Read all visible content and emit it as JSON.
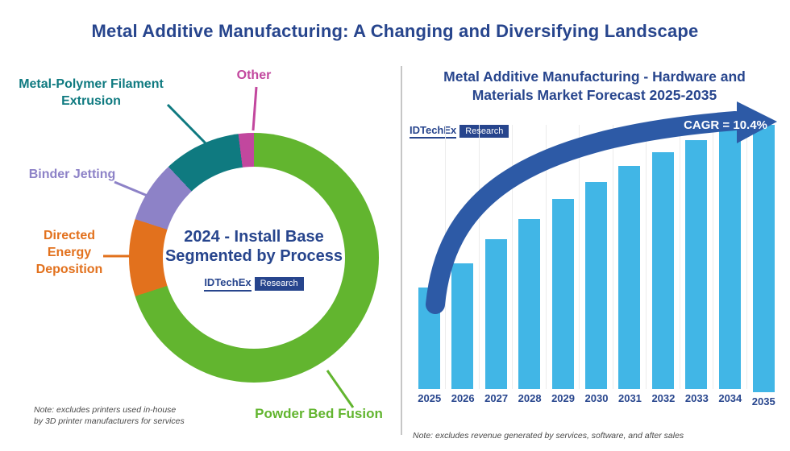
{
  "title": "Metal Additive Manufacturing: A Changing and Diversifying Landscape",
  "logo": {
    "brand": "IDTechEx",
    "sub": "Research"
  },
  "left": {
    "center_line1": "2024 - Install Base",
    "center_line2": "Segmented by Process",
    "note_line1": "Note: excludes printers used in-house",
    "note_line2": "by 3D printer manufacturers for services"
  },
  "right": {
    "title_line1": "Metal Additive Manufacturing - Hardware and",
    "title_line2": "Materials Market Forecast 2025-2035",
    "note": "Note: excludes revenue generated by services, software, and after sales"
  },
  "chart_data": [
    {
      "type": "pie",
      "subtype": "donut",
      "title": "2024 - Install Base Segmented by Process",
      "labels": [
        "Powder Bed Fusion",
        "Directed Energy Deposition",
        "Binder Jetting",
        "Metal-Polymer Filament Extrusion",
        "Other"
      ],
      "values_pct": [
        70,
        10,
        8,
        10,
        2
      ],
      "colors": [
        "#62b52f",
        "#e2711d",
        "#8d82c7",
        "#0f7a80",
        "#c2479e"
      ],
      "note": "Note: excludes printers used in-house by 3D printer manufacturers for services"
    },
    {
      "type": "bar",
      "title": "Metal Additive Manufacturing - Hardware and Materials Market Forecast 2025-2035",
      "categories": [
        "2025",
        "2026",
        "2027",
        "2028",
        "2029",
        "2030",
        "2031",
        "2032",
        "2033",
        "2034",
        "2035"
      ],
      "values_relative_index": [
        100,
        124,
        148,
        168,
        188,
        204,
        220,
        234,
        246,
        256,
        264
      ],
      "y_axis_shown": false,
      "bar_color": "#41b6e6",
      "annotation": "CAGR = 10.4%",
      "note": "Note: excludes revenue generated by services, software, and after sales"
    }
  ]
}
